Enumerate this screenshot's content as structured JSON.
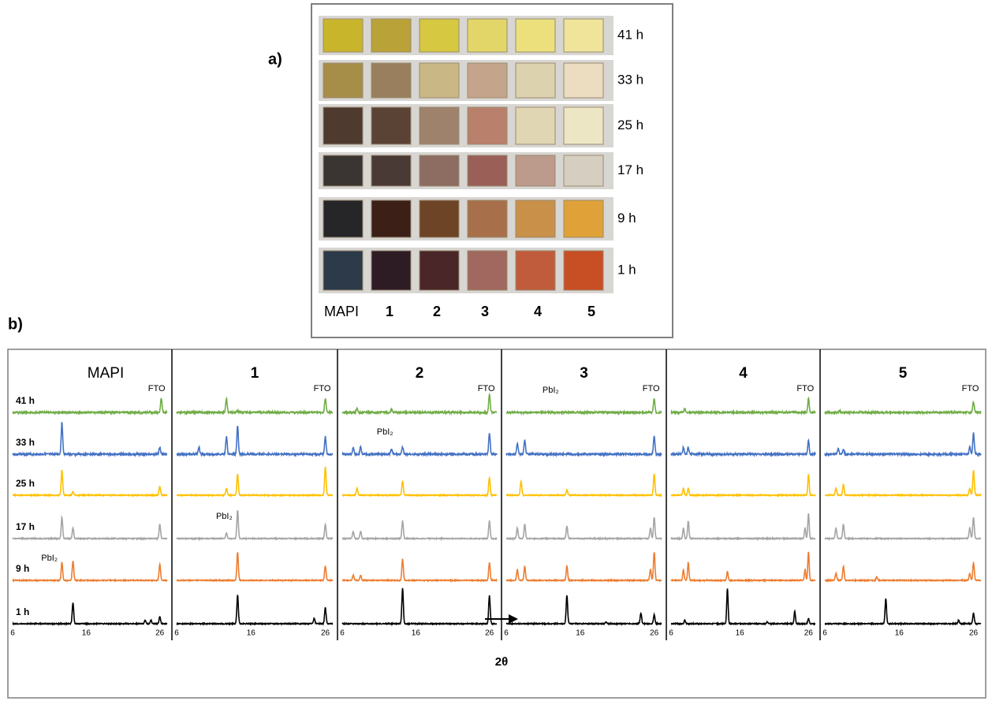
{
  "panel_a": {
    "label": "a)",
    "times": [
      "41 h",
      "33 h",
      "25 h",
      "17 h",
      "9 h",
      "1 h"
    ],
    "samples": [
      "MAPI",
      "1",
      "2",
      "3",
      "4",
      "5"
    ]
  },
  "panel_b": {
    "label": "b)",
    "x_axis_label": "2θ",
    "xlim": [
      6,
      27
    ],
    "xticks": [
      6,
      16,
      26
    ],
    "rows": [
      "41 h",
      "33 h",
      "25 h",
      "17 h",
      "9 h",
      "1 h"
    ],
    "row_colors": [
      "#70ad47",
      "#4472c4",
      "#ffc000",
      "#a5a5a5",
      "#ed7d31",
      "#000000"
    ],
    "annotations": {
      "fto": "FTO",
      "pbi2": "PbI₂"
    },
    "panels": [
      {
        "title": "MAPI",
        "traces": [
          {
            "x": [
              26.2
            ],
            "h": [
              0.4
            ]
          },
          {
            "x": [
              12.7,
              26
            ],
            "h": [
              0.9,
              0.2
            ]
          },
          {
            "x": [
              12.7,
              14.2,
              26
            ],
            "h": [
              0.7,
              0.1,
              0.25
            ]
          },
          {
            "x": [
              12.7,
              14.2,
              26
            ],
            "h": [
              0.6,
              0.3,
              0.4
            ]
          },
          {
            "x": [
              12.7,
              14.2,
              26
            ],
            "h": [
              0.5,
              0.55,
              0.45
            ]
          },
          {
            "x": [
              14.2,
              24,
              24.8,
              26
            ],
            "h": [
              0.6,
              0.1,
              0.1,
              0.2
            ]
          }
        ]
      },
      {
        "title": "1",
        "traces": [
          {
            "x": [
              12.7,
              14.2,
              26
            ],
            "h": [
              0.4,
              0.05,
              0.4
            ]
          },
          {
            "x": [
              9,
              12.7,
              14.2,
              26
            ],
            "h": [
              0.2,
              0.5,
              0.8,
              0.5
            ]
          },
          {
            "x": [
              12.7,
              14.2,
              26
            ],
            "h": [
              0.2,
              0.6,
              0.8
            ]
          },
          {
            "x": [
              12.7,
              14.2,
              26
            ],
            "h": [
              0.15,
              0.8,
              0.4
            ]
          },
          {
            "x": [
              14.2,
              26
            ],
            "h": [
              0.8,
              0.4
            ]
          },
          {
            "x": [
              14.2,
              24.5,
              26
            ],
            "h": [
              0.8,
              0.15,
              0.45
            ]
          }
        ]
      },
      {
        "title": "2",
        "traces": [
          {
            "x": [
              8,
              12.7,
              26
            ],
            "h": [
              0.1,
              0.08,
              0.5
            ]
          },
          {
            "x": [
              7.5,
              8.5,
              12.7,
              14.2,
              26
            ],
            "h": [
              0.2,
              0.2,
              0.15,
              0.2,
              0.6
            ]
          },
          {
            "x": [
              8,
              14.2,
              26
            ],
            "h": [
              0.2,
              0.4,
              0.5
            ]
          },
          {
            "x": [
              7.5,
              8.5,
              14.2,
              26
            ],
            "h": [
              0.2,
              0.2,
              0.5,
              0.5
            ]
          },
          {
            "x": [
              7.5,
              8.5,
              14.2,
              26
            ],
            "h": [
              0.15,
              0.15,
              0.6,
              0.5
            ]
          },
          {
            "x": [
              14.2,
              26
            ],
            "h": [
              1.0,
              0.8
            ]
          }
        ]
      },
      {
        "title": "3",
        "traces": [
          {
            "x": [
              26
            ],
            "h": [
              0.4
            ]
          },
          {
            "x": [
              7.5,
              8.5,
              26
            ],
            "h": [
              0.3,
              0.4,
              0.5
            ]
          },
          {
            "x": [
              8,
              14.2,
              26
            ],
            "h": [
              0.4,
              0.15,
              0.6
            ]
          },
          {
            "x": [
              7.5,
              8.5,
              14.2,
              25.5,
              26
            ],
            "h": [
              0.3,
              0.4,
              0.35,
              0.3,
              0.6
            ]
          },
          {
            "x": [
              7.5,
              8.5,
              14.2,
              25.5,
              26
            ],
            "h": [
              0.3,
              0.4,
              0.4,
              0.3,
              0.8
            ]
          },
          {
            "x": [
              14.2,
              19.5,
              24.2,
              26
            ],
            "h": [
              0.8,
              0.05,
              0.3,
              0.25
            ]
          }
        ]
      },
      {
        "title": "4",
        "traces": [
          {
            "x": [
              8,
              26
            ],
            "h": [
              0.1,
              0.4
            ]
          },
          {
            "x": [
              7.8,
              8.5,
              26
            ],
            "h": [
              0.2,
              0.2,
              0.4
            ]
          },
          {
            "x": [
              7.8,
              8.5,
              26
            ],
            "h": [
              0.2,
              0.2,
              0.6
            ]
          },
          {
            "x": [
              7.8,
              8.5,
              25.5,
              26
            ],
            "h": [
              0.3,
              0.5,
              0.3,
              0.7
            ]
          },
          {
            "x": [
              7.8,
              8.5,
              14.2,
              25.5,
              26
            ],
            "h": [
              0.3,
              0.5,
              0.25,
              0.3,
              0.8
            ]
          },
          {
            "x": [
              8,
              14.2,
              20,
              24,
              26
            ],
            "h": [
              0.1,
              1.0,
              0.05,
              0.35,
              0.15
            ]
          }
        ]
      },
      {
        "title": "5",
        "traces": [
          {
            "x": [
              8,
              26
            ],
            "h": [
              0.05,
              0.3
            ]
          },
          {
            "x": [
              7.8,
              8.5,
              25.5,
              26
            ],
            "h": [
              0.15,
              0.15,
              0.2,
              0.6
            ]
          },
          {
            "x": [
              7.5,
              8.5,
              25.5,
              26
            ],
            "h": [
              0.2,
              0.3,
              0.2,
              0.7
            ]
          },
          {
            "x": [
              7.5,
              8.5,
              25.5,
              26
            ],
            "h": [
              0.3,
              0.4,
              0.3,
              0.6
            ]
          },
          {
            "x": [
              7.5,
              8.5,
              13,
              25.5,
              26
            ],
            "h": [
              0.2,
              0.4,
              0.1,
              0.2,
              0.5
            ]
          },
          {
            "x": [
              14.2,
              24,
              26
            ],
            "h": [
              0.7,
              0.1,
              0.3
            ]
          }
        ]
      }
    ]
  }
}
